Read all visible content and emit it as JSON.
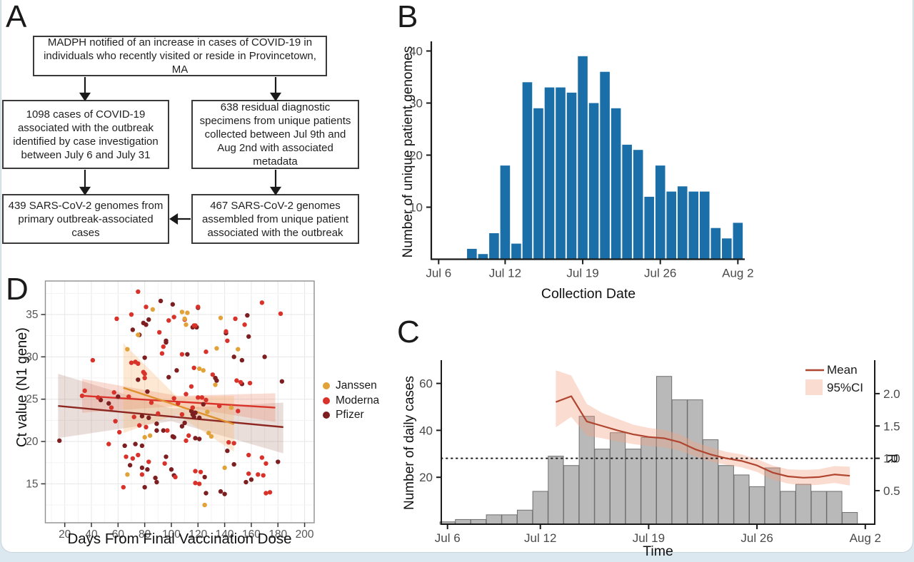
{
  "figure": {
    "panel_labels": [
      "A",
      "B",
      "C",
      "D"
    ]
  },
  "panel_a": {
    "boxes": [
      {
        "id": "notify",
        "text": "MADPH notified of an increase in cases of COVID-19 in individuals who recently visited or reside in Provincetown, MA"
      },
      {
        "id": "cases",
        "text": "1098 cases of COVID-19 associated with the outbreak identified by case investigation between July 6 and July 31"
      },
      {
        "id": "specimens",
        "text": "638 residual diagnostic specimens from unique patients collected between Jul 9th and Aug 2nd with associated metadata"
      },
      {
        "id": "genomes-primary",
        "text": "439 SARS-CoV-2 genomes from primary outbreak-associated cases"
      },
      {
        "id": "genomes-unique",
        "text": "467 SARS-CoV-2 genomes assembled from unique patient associated with the outbreak"
      }
    ]
  },
  "chart_data": [
    {
      "id": "panel-b",
      "type": "bar",
      "title": "",
      "xlabel": "Collection Date",
      "ylabel": "Number of unique patient genomes",
      "first_day": "Jul 9",
      "first_day_offset": 3,
      "values": [
        2,
        1,
        5,
        18,
        3,
        34,
        29,
        33,
        33,
        32,
        39,
        30,
        36,
        29,
        22,
        21,
        12,
        18,
        13,
        14,
        13,
        13,
        6,
        4,
        7
      ],
      "x_ticks": [
        {
          "day": 0,
          "label": "Jul 6"
        },
        {
          "day": 6,
          "label": "Jul 12"
        },
        {
          "day": 13,
          "label": "Jul 19"
        },
        {
          "day": 20,
          "label": "Jul 26"
        },
        {
          "day": 27,
          "label": "Aug 2"
        }
      ],
      "y_ticks": [
        10,
        20,
        30,
        40
      ],
      "ylim": [
        0,
        41.5
      ],
      "bar_color": "#1b6fa9",
      "grid": false
    },
    {
      "id": "panel-c",
      "type": "bar+line-dual-axis",
      "xlabel": "Time",
      "ylabel_left": "Number of daily cases",
      "ylabel_right": "R",
      "first_day": "Jul 6",
      "bar_values": [
        1,
        2,
        2,
        4,
        4,
        6,
        14,
        29,
        25,
        46,
        32,
        39,
        32,
        37,
        63,
        53,
        53,
        36,
        25,
        21,
        16,
        24,
        14,
        17,
        14,
        14,
        5
      ],
      "x_ticks": [
        {
          "day": 0,
          "label": "Jul 6"
        },
        {
          "day": 6,
          "label": "Jul 12"
        },
        {
          "day": 13,
          "label": "Jul 19"
        },
        {
          "day": 20,
          "label": "Jul 26"
        },
        {
          "day": 27,
          "label": "Aug 2"
        }
      ],
      "y_ticks_left": [
        20,
        40,
        60
      ],
      "ylim_left": [
        0,
        70
      ],
      "y_ticks_right": [
        0.5,
        1.0,
        1.5,
        2.0
      ],
      "ylim_right": [
        0,
        2.52
      ],
      "r_first_day_offset": 7,
      "r_mean": [
        1.87,
        1.96,
        1.57,
        1.5,
        1.43,
        1.37,
        1.33,
        1.31,
        1.25,
        1.14,
        1.06,
        1.0,
        0.96,
        0.89,
        0.78,
        0.72,
        0.7,
        0.71,
        0.75,
        0.73
      ],
      "r_upper": [
        2.36,
        2.28,
        1.84,
        1.7,
        1.61,
        1.52,
        1.47,
        1.44,
        1.37,
        1.25,
        1.17,
        1.1,
        1.06,
        0.99,
        0.89,
        0.83,
        0.82,
        0.83,
        0.88,
        0.87
      ],
      "r_lower": [
        1.48,
        1.64,
        1.35,
        1.31,
        1.26,
        1.22,
        1.19,
        1.17,
        1.12,
        1.03,
        0.95,
        0.9,
        0.86,
        0.79,
        0.67,
        0.61,
        0.58,
        0.59,
        0.62,
        0.58
      ],
      "reference_line_r": 1.0,
      "bar_fill": "#b9b9b9",
      "bar_stroke": "#6f6f6f",
      "mean_color": "#b0452f",
      "ci_color": "rgba(244,164,134,0.38)",
      "legend": [
        {
          "label": "Mean",
          "type": "line"
        },
        {
          "label": "95%CI",
          "type": "area"
        }
      ]
    },
    {
      "id": "panel-d",
      "type": "scatter",
      "xlabel": "Days From Final Vaccination Dose",
      "ylabel": "Ct value (N1 gene)",
      "xlim": [
        5,
        208
      ],
      "ylim": [
        10.4,
        39.0
      ],
      "x_ticks": [
        20,
        40,
        60,
        80,
        100,
        120,
        140,
        160,
        180,
        200
      ],
      "y_ticks": [
        15,
        20,
        25,
        30,
        35
      ],
      "grid": true,
      "legend_position": "right",
      "series": [
        {
          "name": "Janssen",
          "color": "#e2a23a",
          "line_color": "#e0912f",
          "regression": {
            "x1": 64,
            "y1": 26.35,
            "x2": 147,
            "y2": 22.05
          },
          "band": {
            "color": "rgba(245,180,110,0.30)",
            "pts": [
              [
                64,
                31.6,
                21.0
              ],
              [
                104,
                25.3,
                23.2
              ],
              [
                147,
                25.4,
                18.8
              ]
            ]
          },
          "points": [
            [
              67,
              30.9
            ],
            [
              75,
              32.6
            ],
            [
              86,
              35.6
            ],
            [
              108,
              35.3
            ],
            [
              112,
              35.2
            ],
            [
              110,
              34.5
            ],
            [
              111,
              33.8
            ],
            [
              137,
              34.6
            ],
            [
              150,
              30.9
            ],
            [
              134,
              31.0
            ],
            [
              121,
              28.6
            ],
            [
              124,
              28.4
            ],
            [
              133,
              26.7
            ],
            [
              145,
              24.0
            ],
            [
              127,
              23.5
            ],
            [
              128,
              21.0
            ],
            [
              130,
              20.6
            ],
            [
              80,
              20.5
            ],
            [
              84,
              20.7
            ],
            [
              67,
              16.1
            ],
            [
              140,
              16.9
            ],
            [
              125,
              12.5
            ]
          ]
        },
        {
          "name": "Moderna",
          "color": "#d8322a",
          "line_color": "#d8322a",
          "regression": {
            "x1": 33,
            "y1": 25.4,
            "x2": 178,
            "y2": 24.0
          },
          "band": {
            "color": "rgba(235,130,100,0.28)",
            "pts": [
              [
                33,
                27.4,
                23.4
              ],
              [
                105,
                25.4,
                24.2
              ],
              [
                178,
                25.7,
                22.3
              ]
            ]
          },
          "points": [
            [
              75,
              37.7
            ],
            [
              81,
              35.9
            ],
            [
              70,
              35.0
            ],
            [
              59,
              34.5
            ],
            [
              98,
              34.3
            ],
            [
              110,
              34.4
            ],
            [
              120,
              35.9
            ],
            [
              148,
              34.5
            ],
            [
              155,
              33.8
            ],
            [
              168,
              36.4
            ],
            [
              182,
              35.1
            ],
            [
              102,
              34.7
            ],
            [
              117,
              33.7
            ],
            [
              118,
              33.7
            ],
            [
              141,
              33.0
            ],
            [
              91,
              32.9
            ],
            [
              94,
              31.2
            ],
            [
              142,
              31.9
            ],
            [
              126,
              30.6
            ],
            [
              108,
              30.3
            ],
            [
              93,
              30.4
            ],
            [
              41,
              29.6
            ],
            [
              70,
              29.3
            ],
            [
              73,
              29.4
            ],
            [
              75,
              29.2
            ],
            [
              117,
              28.7
            ],
            [
              79,
              28.2
            ],
            [
              80,
              28.0
            ],
            [
              131,
              27.9
            ],
            [
              80,
              27.5
            ],
            [
              149,
              27.2
            ],
            [
              152,
              27.0
            ],
            [
              159,
              26.9
            ],
            [
              115,
              26.5
            ],
            [
              35,
              26.0
            ],
            [
              57,
              25.8
            ],
            [
              111,
              25.6
            ],
            [
              33,
              25.4
            ],
            [
              68,
              25.3
            ],
            [
              45,
              25.2
            ],
            [
              123,
              25.2
            ],
            [
              120,
              25.2
            ],
            [
              102,
              25.1
            ],
            [
              126,
              24.9
            ],
            [
              85,
              24.6
            ],
            [
              105,
              24.5
            ],
            [
              136,
              24.2
            ],
            [
              55,
              24.0
            ],
            [
              116,
              24.0
            ],
            [
              150,
              23.6
            ],
            [
              90,
              23.3
            ],
            [
              108,
              23.2
            ],
            [
              72,
              22.9
            ],
            [
              58,
              22.4
            ],
            [
              76,
              21.9
            ],
            [
              81,
              21.7
            ],
            [
              97,
              21.3
            ],
            [
              61,
              21.1
            ],
            [
              113,
              20.7
            ],
            [
              111,
              20.1
            ],
            [
              143,
              19.9
            ],
            [
              147,
              19.8
            ],
            [
              53,
              19.7
            ],
            [
              158,
              18.4
            ],
            [
              66,
              18.2
            ],
            [
              168,
              18.1
            ],
            [
              75,
              18.4
            ],
            [
              83,
              17.6
            ],
            [
              71,
              18.0
            ],
            [
              171,
              17.4
            ],
            [
              95,
              17.4
            ],
            [
              118,
              16.5
            ],
            [
              122,
              16.4
            ],
            [
              158,
              16.2
            ],
            [
              165,
              16.1
            ],
            [
              169,
              16.0
            ],
            [
              78,
              16.1
            ],
            [
              103,
              15.8
            ],
            [
              118,
              15.1
            ],
            [
              121,
              15.0
            ],
            [
              64,
              14.6
            ],
            [
              171,
              13.9
            ],
            [
              174,
              14.0
            ]
          ]
        },
        {
          "name": "Pfizer",
          "color": "#7d1e20",
          "line_color": "#8c2721",
          "regression": {
            "x1": 15,
            "y1": 24.2,
            "x2": 184,
            "y2": 21.7
          },
          "band": {
            "color": "rgba(150,90,70,0.20)",
            "pts": [
              [
                15,
                28.0,
                20.4
              ],
              [
                100,
                23.9,
                22.4
              ],
              [
                184,
                24.6,
                18.6
              ]
            ]
          },
          "points": [
            [
              92,
              36.6
            ],
            [
              101,
              36.2
            ],
            [
              120,
              35.8
            ],
            [
              157,
              34.9
            ],
            [
              83,
              34.4
            ],
            [
              79,
              34.0
            ],
            [
              81,
              33.8
            ],
            [
              116,
              33.5
            ],
            [
              119,
              33.5
            ],
            [
              71,
              33.2
            ],
            [
              141,
              32.8
            ],
            [
              76,
              32.6
            ],
            [
              158,
              32.4
            ],
            [
              96,
              31.9
            ],
            [
              96,
              31.7
            ],
            [
              112,
              30.3
            ],
            [
              147,
              30.0
            ],
            [
              170,
              30.0
            ],
            [
              80,
              29.9
            ],
            [
              153,
              29.6
            ],
            [
              104,
              28.4
            ],
            [
              98,
              27.6
            ],
            [
              133,
              27.5
            ],
            [
              75,
              27.3
            ],
            [
              134,
              27.2
            ],
            [
              183,
              27.1
            ],
            [
              153,
              26.8
            ],
            [
              82,
              25.9
            ],
            [
              60,
              25.3
            ],
            [
              47,
              24.9
            ],
            [
              53,
              24.5
            ],
            [
              124,
              24.4
            ],
            [
              115,
              23.6
            ],
            [
              118,
              23.4
            ],
            [
              116,
              23.2
            ],
            [
              78,
              23.0
            ],
            [
              117,
              22.9
            ],
            [
              83,
              22.8
            ],
            [
              121,
              22.8
            ],
            [
              110,
              22.2
            ],
            [
              89,
              22.1
            ],
            [
              108,
              21.8
            ],
            [
              89,
              21.3
            ],
            [
              94,
              21.3
            ],
            [
              101,
              20.6
            ],
            [
              102,
              20.5
            ],
            [
              118,
              20.4
            ],
            [
              121,
              20.3
            ],
            [
              16,
              20.1
            ],
            [
              73,
              19.7
            ],
            [
              65,
              19.5
            ],
            [
              78,
              19.5
            ],
            [
              142,
              18.9
            ],
            [
              96,
              18.2
            ],
            [
              180,
              17.6
            ],
            [
              147,
              17.3
            ],
            [
              69,
              17.2
            ],
            [
              78,
              16.9
            ],
            [
              82,
              16.7
            ],
            [
              100,
              16.7
            ],
            [
              125,
              15.8
            ],
            [
              88,
              15.7
            ],
            [
              160,
              15.5
            ],
            [
              156,
              15.2
            ],
            [
              89,
              15.2
            ],
            [
              102,
              16.0
            ],
            [
              126,
              13.9
            ],
            [
              137,
              14.1
            ],
            [
              140,
              13.8
            ],
            [
              80,
              14.6
            ]
          ]
        }
      ]
    }
  ]
}
